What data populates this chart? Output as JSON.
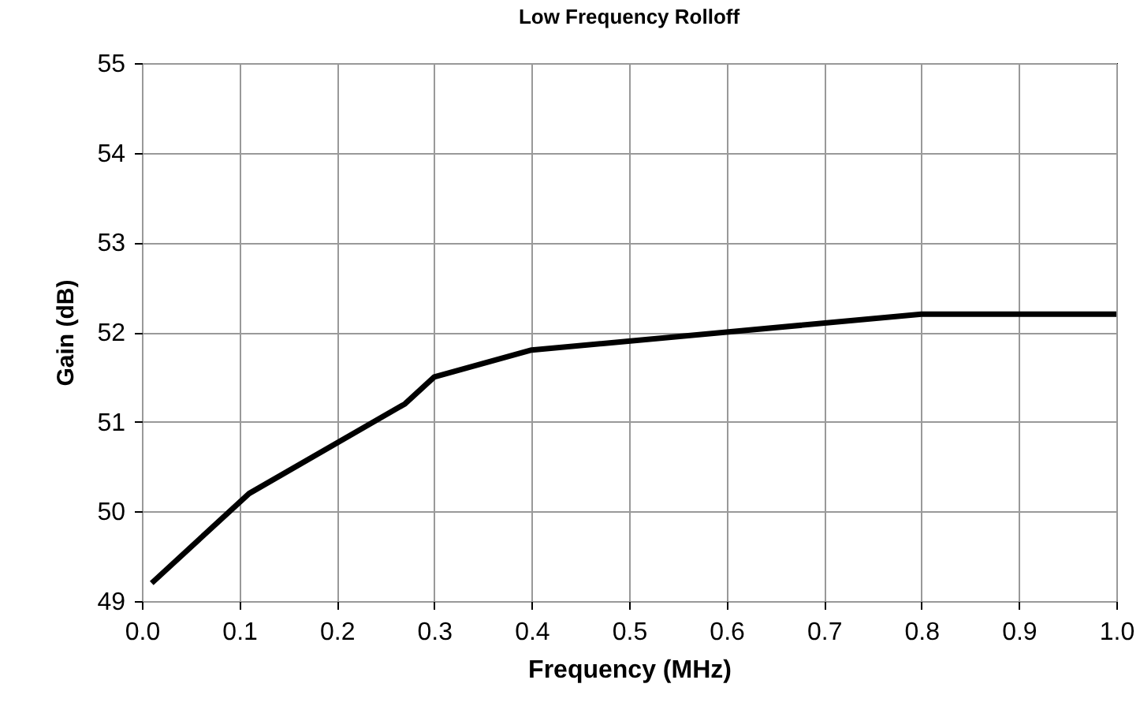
{
  "chart_data": {
    "type": "line",
    "title": "Low Frequency Rolloff",
    "xlabel": "Frequency (MHz)",
    "ylabel": "Gain (dB)",
    "x": [
      0.01,
      0.11,
      0.27,
      0.3,
      0.4,
      0.6,
      0.8,
      1.0
    ],
    "series": [
      {
        "color": "#000000",
        "values": [
          49.2,
          50.2,
          51.2,
          51.5,
          51.8,
          52.0,
          52.2,
          52.2
        ]
      }
    ],
    "xlim": [
      0,
      1
    ],
    "xticks": [
      {
        "value": 0,
        "label": "0.0"
      },
      0.1,
      0.2,
      0.3,
      0.4,
      0.5,
      0.6,
      0.7,
      0.8,
      0.9,
      {
        "value": 1,
        "label": "1.0"
      }
    ],
    "ylim": [
      49,
      55
    ],
    "yticks": [
      49,
      50,
      51,
      52,
      53,
      54,
      55
    ],
    "grid": true,
    "marker": "none",
    "line_style": "solid"
  }
}
